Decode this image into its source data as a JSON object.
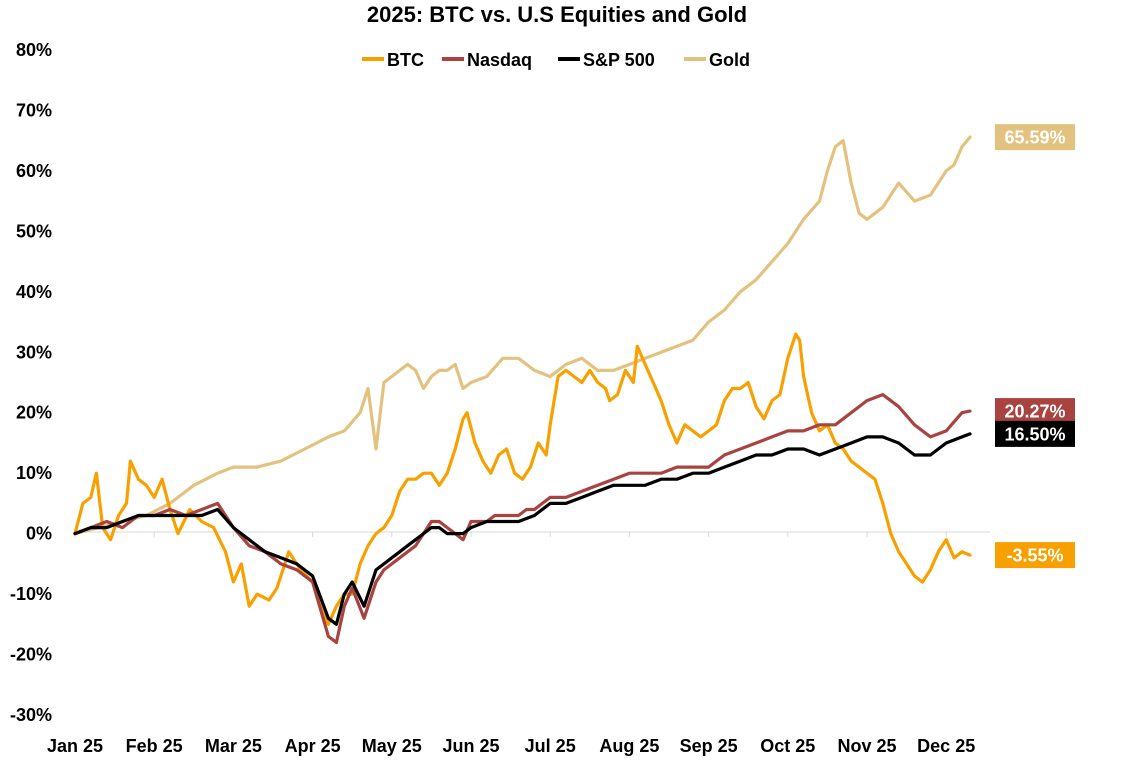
{
  "chart_data": {
    "type": "line",
    "title": "2025: BTC vs. U.S Equities and Gold",
    "xlabel": "",
    "ylabel": "",
    "ylim": [
      -30,
      80
    ],
    "yticks": [
      80,
      70,
      60,
      50,
      40,
      30,
      20,
      10,
      0,
      -10,
      -20,
      -30
    ],
    "ytick_labels": [
      "80%",
      "70%",
      "60%",
      "50%",
      "40%",
      "30%",
      "20%",
      "10%",
      "0%",
      "-10%",
      "-20%",
      "-30%"
    ],
    "categories": [
      "Jan 25",
      "Feb 25",
      "Mar 25",
      "Apr 25",
      "May 25",
      "Jun 25",
      "Jul 25",
      "Aug 25",
      "Sep 25",
      "Oct 25",
      "Nov 25",
      "Dec 25"
    ],
    "legend_position": "top-center",
    "series": [
      {
        "name": "BTC",
        "color": "#F7A000",
        "end_label": "-3.55%",
        "end_label_text_color": "#ffffff",
        "points": [
          [
            0,
            0
          ],
          [
            0.1,
            5
          ],
          [
            0.2,
            6
          ],
          [
            0.27,
            10
          ],
          [
            0.35,
            1
          ],
          [
            0.45,
            -1
          ],
          [
            0.55,
            3
          ],
          [
            0.65,
            5
          ],
          [
            0.7,
            12
          ],
          [
            0.8,
            9
          ],
          [
            0.9,
            8
          ],
          [
            1.0,
            6
          ],
          [
            1.1,
            9
          ],
          [
            1.2,
            4
          ],
          [
            1.3,
            0
          ],
          [
            1.45,
            4
          ],
          [
            1.6,
            2
          ],
          [
            1.75,
            1
          ],
          [
            1.9,
            -3
          ],
          [
            2.0,
            -8
          ],
          [
            2.1,
            -5
          ],
          [
            2.2,
            -12
          ],
          [
            2.3,
            -10
          ],
          [
            2.45,
            -11
          ],
          [
            2.55,
            -9
          ],
          [
            2.7,
            -3
          ],
          [
            2.85,
            -6
          ],
          [
            3.0,
            -8
          ],
          [
            3.1,
            -12
          ],
          [
            3.2,
            -15
          ],
          [
            3.3,
            -12
          ],
          [
            3.4,
            -10
          ],
          [
            3.5,
            -10
          ],
          [
            3.6,
            -5
          ],
          [
            3.7,
            -2
          ],
          [
            3.8,
            0
          ],
          [
            3.9,
            1
          ],
          [
            4.0,
            3
          ],
          [
            4.1,
            7
          ],
          [
            4.2,
            9
          ],
          [
            4.3,
            9
          ],
          [
            4.4,
            10
          ],
          [
            4.5,
            10
          ],
          [
            4.6,
            8
          ],
          [
            4.7,
            10
          ],
          [
            4.8,
            14
          ],
          [
            4.9,
            19
          ],
          [
            4.95,
            20
          ],
          [
            5.05,
            15
          ],
          [
            5.15,
            12
          ],
          [
            5.25,
            10
          ],
          [
            5.35,
            13
          ],
          [
            5.45,
            14
          ],
          [
            5.55,
            10
          ],
          [
            5.65,
            9
          ],
          [
            5.75,
            11
          ],
          [
            5.85,
            15
          ],
          [
            5.95,
            13
          ],
          [
            6.0,
            18
          ],
          [
            6.1,
            26
          ],
          [
            6.2,
            27
          ],
          [
            6.3,
            26
          ],
          [
            6.4,
            25
          ],
          [
            6.5,
            27
          ],
          [
            6.6,
            25
          ],
          [
            6.7,
            24
          ],
          [
            6.75,
            22
          ],
          [
            6.85,
            23
          ],
          [
            6.95,
            27
          ],
          [
            7.05,
            25
          ],
          [
            7.1,
            31
          ],
          [
            7.2,
            28
          ],
          [
            7.3,
            25
          ],
          [
            7.4,
            22
          ],
          [
            7.5,
            18
          ],
          [
            7.6,
            15
          ],
          [
            7.7,
            18
          ],
          [
            7.8,
            17
          ],
          [
            7.9,
            16
          ],
          [
            8.0,
            17
          ],
          [
            8.1,
            18
          ],
          [
            8.2,
            22
          ],
          [
            8.3,
            24
          ],
          [
            8.4,
            24
          ],
          [
            8.5,
            25
          ],
          [
            8.6,
            21
          ],
          [
            8.7,
            19
          ],
          [
            8.8,
            22
          ],
          [
            8.9,
            23
          ],
          [
            9.0,
            29
          ],
          [
            9.1,
            33
          ],
          [
            9.15,
            32
          ],
          [
            9.2,
            26
          ],
          [
            9.3,
            20
          ],
          [
            9.4,
            17
          ],
          [
            9.5,
            18
          ],
          [
            9.6,
            15
          ],
          [
            9.7,
            14
          ],
          [
            9.8,
            12
          ],
          [
            9.9,
            11
          ],
          [
            10.0,
            10
          ],
          [
            10.1,
            9
          ],
          [
            10.2,
            5
          ],
          [
            10.3,
            0
          ],
          [
            10.4,
            -3
          ],
          [
            10.5,
            -5
          ],
          [
            10.6,
            -7
          ],
          [
            10.7,
            -8
          ],
          [
            10.8,
            -6
          ],
          [
            10.9,
            -3
          ],
          [
            11.0,
            -1
          ],
          [
            11.1,
            -4
          ],
          [
            11.2,
            -3
          ],
          [
            11.3,
            -3.55
          ]
        ]
      },
      {
        "name": "Nasdaq",
        "color": "#A8433F",
        "end_label": "20.27%",
        "end_label_text_color": "#ffffff",
        "points": [
          [
            0,
            0
          ],
          [
            0.2,
            1
          ],
          [
            0.4,
            2
          ],
          [
            0.6,
            1
          ],
          [
            0.8,
            3
          ],
          [
            1.0,
            3
          ],
          [
            1.2,
            4
          ],
          [
            1.4,
            3
          ],
          [
            1.6,
            4
          ],
          [
            1.8,
            5
          ],
          [
            2.0,
            1
          ],
          [
            2.2,
            -2
          ],
          [
            2.4,
            -3
          ],
          [
            2.6,
            -5
          ],
          [
            2.8,
            -6
          ],
          [
            3.0,
            -8
          ],
          [
            3.2,
            -17
          ],
          [
            3.3,
            -18
          ],
          [
            3.4,
            -12
          ],
          [
            3.5,
            -9
          ],
          [
            3.65,
            -14
          ],
          [
            3.8,
            -8
          ],
          [
            3.9,
            -6
          ],
          [
            4.0,
            -5
          ],
          [
            4.1,
            -4
          ],
          [
            4.2,
            -3
          ],
          [
            4.3,
            -2
          ],
          [
            4.4,
            0
          ],
          [
            4.5,
            2
          ],
          [
            4.6,
            2
          ],
          [
            4.7,
            1
          ],
          [
            4.8,
            0
          ],
          [
            4.9,
            -1
          ],
          [
            5.0,
            2
          ],
          [
            5.1,
            2
          ],
          [
            5.2,
            2
          ],
          [
            5.3,
            3
          ],
          [
            5.4,
            3
          ],
          [
            5.5,
            3
          ],
          [
            5.6,
            3
          ],
          [
            5.7,
            4
          ],
          [
            5.8,
            4
          ],
          [
            5.9,
            5
          ],
          [
            6.0,
            6
          ],
          [
            6.2,
            6
          ],
          [
            6.4,
            7
          ],
          [
            6.6,
            8
          ],
          [
            6.8,
            9
          ],
          [
            7.0,
            10
          ],
          [
            7.2,
            10
          ],
          [
            7.4,
            10
          ],
          [
            7.6,
            11
          ],
          [
            7.8,
            11
          ],
          [
            8.0,
            11
          ],
          [
            8.2,
            13
          ],
          [
            8.4,
            14
          ],
          [
            8.6,
            15
          ],
          [
            8.8,
            16
          ],
          [
            9.0,
            17
          ],
          [
            9.2,
            17
          ],
          [
            9.4,
            18
          ],
          [
            9.6,
            18
          ],
          [
            9.8,
            20
          ],
          [
            10.0,
            22
          ],
          [
            10.2,
            23
          ],
          [
            10.4,
            21
          ],
          [
            10.6,
            18
          ],
          [
            10.8,
            16
          ],
          [
            11.0,
            17
          ],
          [
            11.2,
            20
          ],
          [
            11.3,
            20.27
          ]
        ]
      },
      {
        "name": "S&P 500",
        "color": "#000000",
        "end_label": "16.50%",
        "end_label_text_color": "#ffffff",
        "points": [
          [
            0,
            0
          ],
          [
            0.2,
            1
          ],
          [
            0.4,
            1
          ],
          [
            0.6,
            2
          ],
          [
            0.8,
            3
          ],
          [
            1.0,
            3
          ],
          [
            1.2,
            3
          ],
          [
            1.4,
            3
          ],
          [
            1.6,
            3
          ],
          [
            1.8,
            4
          ],
          [
            2.0,
            1
          ],
          [
            2.2,
            -1
          ],
          [
            2.4,
            -3
          ],
          [
            2.6,
            -4
          ],
          [
            2.8,
            -5
          ],
          [
            3.0,
            -7
          ],
          [
            3.2,
            -14
          ],
          [
            3.3,
            -15
          ],
          [
            3.4,
            -10
          ],
          [
            3.5,
            -8
          ],
          [
            3.65,
            -12
          ],
          [
            3.8,
            -6
          ],
          [
            3.9,
            -5
          ],
          [
            4.0,
            -4
          ],
          [
            4.1,
            -3
          ],
          [
            4.2,
            -2
          ],
          [
            4.3,
            -1
          ],
          [
            4.4,
            0
          ],
          [
            4.5,
            1
          ],
          [
            4.6,
            1
          ],
          [
            4.7,
            0
          ],
          [
            4.8,
            0
          ],
          [
            4.9,
            0
          ],
          [
            5.0,
            1
          ],
          [
            5.2,
            2
          ],
          [
            5.4,
            2
          ],
          [
            5.6,
            2
          ],
          [
            5.8,
            3
          ],
          [
            6.0,
            5
          ],
          [
            6.2,
            5
          ],
          [
            6.4,
            6
          ],
          [
            6.6,
            7
          ],
          [
            6.8,
            8
          ],
          [
            7.0,
            8
          ],
          [
            7.2,
            8
          ],
          [
            7.4,
            9
          ],
          [
            7.6,
            9
          ],
          [
            7.8,
            10
          ],
          [
            8.0,
            10
          ],
          [
            8.2,
            11
          ],
          [
            8.4,
            12
          ],
          [
            8.6,
            13
          ],
          [
            8.8,
            13
          ],
          [
            9.0,
            14
          ],
          [
            9.2,
            14
          ],
          [
            9.4,
            13
          ],
          [
            9.6,
            14
          ],
          [
            9.8,
            15
          ],
          [
            10.0,
            16
          ],
          [
            10.2,
            16
          ],
          [
            10.4,
            15
          ],
          [
            10.6,
            13
          ],
          [
            10.8,
            13
          ],
          [
            11.0,
            15
          ],
          [
            11.2,
            16
          ],
          [
            11.3,
            16.5
          ]
        ]
      },
      {
        "name": "Gold",
        "color": "#E2C27E",
        "end_label": "65.59%",
        "end_label_text_color": "#ffffff",
        "points": [
          [
            0,
            0
          ],
          [
            0.3,
            1
          ],
          [
            0.6,
            2
          ],
          [
            0.9,
            3
          ],
          [
            1.2,
            5
          ],
          [
            1.5,
            8
          ],
          [
            1.8,
            10
          ],
          [
            2.0,
            11
          ],
          [
            2.3,
            11
          ],
          [
            2.6,
            12
          ],
          [
            2.9,
            14
          ],
          [
            3.2,
            16
          ],
          [
            3.4,
            17
          ],
          [
            3.6,
            20
          ],
          [
            3.7,
            24
          ],
          [
            3.8,
            14
          ],
          [
            3.9,
            25
          ],
          [
            4.0,
            26
          ],
          [
            4.1,
            27
          ],
          [
            4.2,
            28
          ],
          [
            4.3,
            27
          ],
          [
            4.4,
            24
          ],
          [
            4.5,
            26
          ],
          [
            4.6,
            27
          ],
          [
            4.7,
            27
          ],
          [
            4.8,
            28
          ],
          [
            4.9,
            24
          ],
          [
            5.0,
            25
          ],
          [
            5.2,
            26
          ],
          [
            5.4,
            29
          ],
          [
            5.6,
            29
          ],
          [
            5.8,
            27
          ],
          [
            6.0,
            26
          ],
          [
            6.2,
            28
          ],
          [
            6.4,
            29
          ],
          [
            6.6,
            27
          ],
          [
            6.8,
            27
          ],
          [
            7.0,
            28
          ],
          [
            7.2,
            29
          ],
          [
            7.4,
            30
          ],
          [
            7.6,
            31
          ],
          [
            7.8,
            32
          ],
          [
            8.0,
            35
          ],
          [
            8.2,
            37
          ],
          [
            8.4,
            40
          ],
          [
            8.6,
            42
          ],
          [
            8.8,
            45
          ],
          [
            9.0,
            48
          ],
          [
            9.2,
            52
          ],
          [
            9.4,
            55
          ],
          [
            9.5,
            60
          ],
          [
            9.6,
            64
          ],
          [
            9.7,
            65
          ],
          [
            9.8,
            58
          ],
          [
            9.9,
            53
          ],
          [
            10.0,
            52
          ],
          [
            10.2,
            54
          ],
          [
            10.4,
            58
          ],
          [
            10.6,
            55
          ],
          [
            10.8,
            56
          ],
          [
            11.0,
            60
          ],
          [
            11.1,
            61
          ],
          [
            11.2,
            64
          ],
          [
            11.3,
            65.59
          ]
        ]
      }
    ]
  }
}
